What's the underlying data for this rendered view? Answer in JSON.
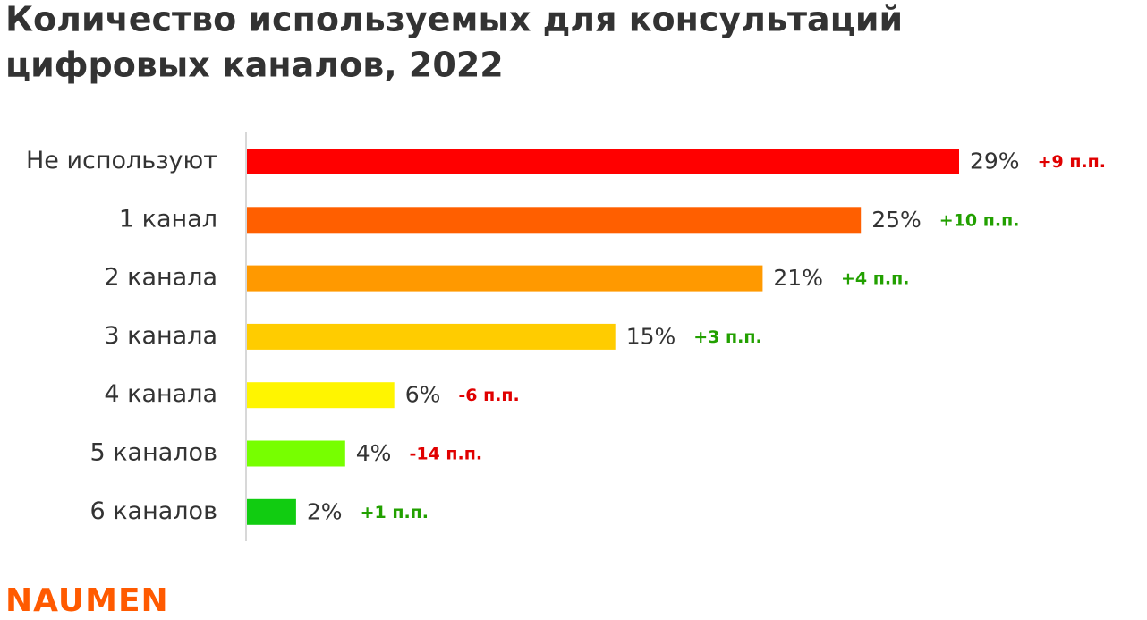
{
  "chart_data": {
    "type": "bar",
    "orientation": "horizontal",
    "title": [
      "Количество используемых для консультаций",
      "цифровых каналов, 2022"
    ],
    "categories": [
      "Не используют",
      "1 канал",
      "2 канала",
      "3 канала",
      "4 канала",
      "5 каналов",
      "6 каналов"
    ],
    "values": [
      29,
      25,
      21,
      15,
      6,
      4,
      2
    ],
    "value_labels": [
      "29%",
      "25%",
      "21%",
      "15%",
      "6%",
      "4%",
      "2%"
    ],
    "colors": [
      "#ff0000",
      "#ff5f00",
      "#ff9900",
      "#ffcc00",
      "#fff500",
      "#77ff00",
      "#11cc11"
    ],
    "changes": [
      "+9 п.п.",
      "+10 п.п.",
      "+4 п.п.",
      "+3 п.п.",
      "-6 п.п.",
      "-14 п.п.",
      "+1 п.п."
    ],
    "change_colors": [
      "#e00000",
      "#22a000",
      "#22a000",
      "#22a000",
      "#e00000",
      "#e00000",
      "#22a000"
    ]
  },
  "logo": {
    "text": "NAUMEN",
    "color": "#ff5a00"
  }
}
